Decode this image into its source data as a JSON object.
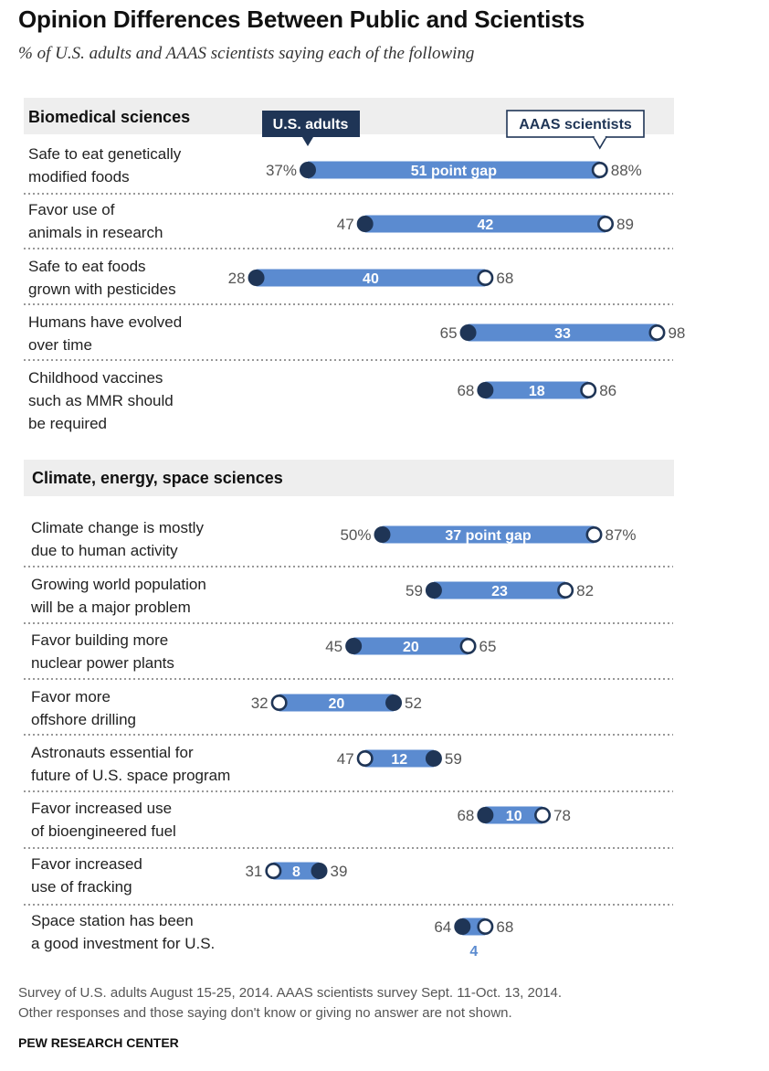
{
  "title": "Opinion Differences Between Public and Scientists",
  "subtitle": "% of U.S. adults and AAAS scientists saying each of the following",
  "colors": {
    "bar": "#5b8bd0",
    "dot_fill": "#1f3556",
    "legend_adults_bg": "#1f3556",
    "legend_sci_border": "#1f3556",
    "section_bg": "#eeeeee"
  },
  "legend": {
    "adults": "U.S. adults",
    "scientists": "AAAS scientists"
  },
  "footnote": [
    "Survey of U.S. adults August 15-25, 2014. AAAS scientists survey Sept. 11-Oct. 13, 2014.",
    "Other responses and those saying don't know or giving no answer are not shown."
  ],
  "source": "PEW RESEARCH CENTER",
  "chart_data": {
    "type": "dot-range",
    "sections": [
      {
        "title": "Biomedical sciences",
        "items": [
          {
            "label_lines": [
              "Safe to eat genetically",
              "modified foods"
            ],
            "adults": 37,
            "scientists": 88,
            "gap": 51,
            "adults_text": "37%",
            "scientists_text": "88%",
            "gap_text": "51 point gap"
          },
          {
            "label_lines": [
              "Favor use of",
              "animals in research"
            ],
            "adults": 47,
            "scientists": 89,
            "gap": 42,
            "adults_text": "47",
            "scientists_text": "89",
            "gap_text": "42"
          },
          {
            "label_lines": [
              "Safe to eat foods",
              "grown with pesticides"
            ],
            "adults": 28,
            "scientists": 68,
            "gap": 40,
            "adults_text": "28",
            "scientists_text": "68",
            "gap_text": "40"
          },
          {
            "label_lines": [
              "Humans have evolved",
              "over time"
            ],
            "adults": 65,
            "scientists": 98,
            "gap": 33,
            "adults_text": "65",
            "scientists_text": "98",
            "gap_text": "33"
          },
          {
            "label_lines": [
              "Childhood vaccines",
              "such as MMR should",
              "be required"
            ],
            "adults": 68,
            "scientists": 86,
            "gap": 18,
            "adults_text": "68",
            "scientists_text": "86",
            "gap_text": "18"
          }
        ]
      },
      {
        "title": "Climate, energy, space sciences",
        "items": [
          {
            "label_lines": [
              "Climate change is mostly",
              "due to human activity"
            ],
            "adults": 50,
            "scientists": 87,
            "gap": 37,
            "adults_text": "50%",
            "scientists_text": "87%",
            "gap_text": "37 point gap"
          },
          {
            "label_lines": [
              "Growing world population",
              "will be a major problem"
            ],
            "adults": 59,
            "scientists": 82,
            "gap": 23,
            "adults_text": "59",
            "scientists_text": "82",
            "gap_text": "23"
          },
          {
            "label_lines": [
              "Favor building more",
              "nuclear power plants"
            ],
            "adults": 45,
            "scientists": 65,
            "gap": 20,
            "adults_text": "45",
            "scientists_text": "65",
            "gap_text": "20"
          },
          {
            "label_lines": [
              "Favor more",
              "offshore drilling"
            ],
            "adults": 52,
            "scientists": 32,
            "gap": 20,
            "adults_text": "52",
            "scientists_text": "32",
            "gap_text": "20"
          },
          {
            "label_lines": [
              "Astronauts essential for",
              "future of U.S. space program"
            ],
            "adults": 59,
            "scientists": 47,
            "gap": 12,
            "adults_text": "59",
            "scientists_text": "47",
            "gap_text": "12"
          },
          {
            "label_lines": [
              "Favor increased use",
              "of bioengineered fuel"
            ],
            "adults": 68,
            "scientists": 78,
            "gap": 10,
            "adults_text": "68",
            "scientists_text": "78",
            "gap_text": "10"
          },
          {
            "label_lines": [
              "Favor increased",
              "use of fracking"
            ],
            "adults": 39,
            "scientists": 31,
            "gap": 8,
            "adults_text": "39",
            "scientists_text": "31",
            "gap_text": "8"
          },
          {
            "label_lines": [
              "Space station has been",
              "a good investment for U.S."
            ],
            "adults": 64,
            "scientists": 68,
            "gap": 4,
            "adults_text": "64",
            "scientists_text": "68",
            "gap_text": "4"
          }
        ]
      }
    ]
  }
}
